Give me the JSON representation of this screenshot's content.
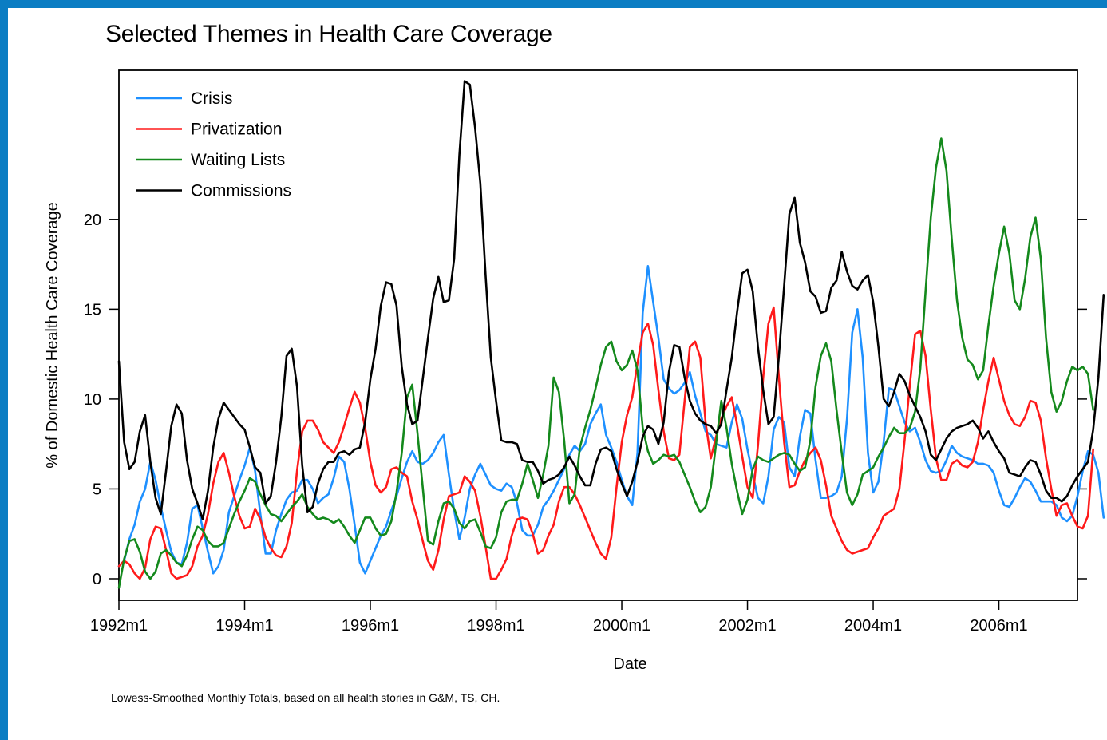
{
  "page": {
    "footnote": "Lowess-Smoothed Monthly Totals, based on all health stories in G&M, TS, CH.",
    "background_color": "#0b7dc3"
  },
  "chart_data": {
    "type": "line",
    "title": "Selected Themes in Health Care Coverage",
    "xlabel": "Date",
    "ylabel": "% of Domestic Health Care Coverage",
    "x_start": "1992m1",
    "x_frequency": "monthly",
    "xlim": [
      "1992m1",
      "2007m4"
    ],
    "ylim": [
      -1.2,
      28.3
    ],
    "x_ticks": [
      {
        "date": "1992m1",
        "label": "1992m1"
      },
      {
        "date": "1994m1",
        "label": "1994m1"
      },
      {
        "date": "1996m1",
        "label": "1996m1"
      },
      {
        "date": "1998m1",
        "label": "1998m1"
      },
      {
        "date": "2000m1",
        "label": "2000m1"
      },
      {
        "date": "2002m1",
        "label": "2002m1"
      },
      {
        "date": "2004m1",
        "label": "2004m1"
      },
      {
        "date": "2006m1",
        "label": "2006m1"
      }
    ],
    "y_ticks": [
      0,
      5,
      10,
      15,
      20
    ],
    "grid": false,
    "legend_position": "top-left",
    "series": [
      {
        "name": "Crisis",
        "color": "#1e90ff",
        "values": [
          0.7,
          1.0,
          2.2,
          3.0,
          4.3,
          5.0,
          6.5,
          5.5,
          4.0,
          2.7,
          1.5,
          0.9,
          0.8,
          2.0,
          3.9,
          4.1,
          2.8,
          1.5,
          0.3,
          0.7,
          1.6,
          3.7,
          4.6,
          5.5,
          6.3,
          7.3,
          6.0,
          3.6,
          1.4,
          1.4,
          2.7,
          3.6,
          4.4,
          4.8,
          4.9,
          5.5,
          5.5,
          5.0,
          4.2,
          4.5,
          4.7,
          5.6,
          6.8,
          6.5,
          5.0,
          3.0,
          0.9,
          0.3,
          1.0,
          1.7,
          2.4,
          2.9,
          3.8,
          4.6,
          5.6,
          6.5,
          7.1,
          6.5,
          6.4,
          6.6,
          7.0,
          7.6,
          8.0,
          5.8,
          3.8,
          2.2,
          3.4,
          5.0,
          5.8,
          6.4,
          5.8,
          5.2,
          5.0,
          4.9,
          5.3,
          5.1,
          4.2,
          2.7,
          2.4,
          2.4,
          3.0,
          4.0,
          4.4,
          4.9,
          5.5,
          6.1,
          6.9,
          7.4,
          7.1,
          7.5,
          8.6,
          9.2,
          9.7,
          8.0,
          7.3,
          6.5,
          5.5,
          4.6,
          4.1,
          7.0,
          14.8,
          17.4,
          15.4,
          13.4,
          11.1,
          10.6,
          10.3,
          10.5,
          10.9,
          11.5,
          10.2,
          9.2,
          8.2,
          8.0,
          7.5,
          7.4,
          7.3,
          8.7,
          9.7,
          8.9,
          7.2,
          5.8,
          4.5,
          4.2,
          5.7,
          8.3,
          9.0,
          8.7,
          6.2,
          5.7,
          7.9,
          9.4,
          9.2,
          6.6,
          4.5,
          4.5,
          4.6,
          4.8,
          5.7,
          8.9,
          13.7,
          15.0,
          12.3,
          7.0,
          4.8,
          5.4,
          7.6,
          10.6,
          10.5,
          9.6,
          8.7,
          8.2,
          8.4,
          7.6,
          6.6,
          6.0,
          5.9,
          6.0,
          6.6,
          7.4,
          7.0,
          6.8,
          6.7,
          6.6,
          6.4,
          6.4,
          6.3,
          5.9,
          4.9,
          4.1,
          4.0,
          4.5,
          5.1,
          5.6,
          5.4,
          4.9,
          4.3,
          4.3,
          4.3,
          4.1,
          3.4,
          3.2,
          3.5,
          4.6,
          6.0,
          7.1,
          6.9,
          5.9,
          3.4
        ]
      },
      {
        "name": "Privatization",
        "color": "#ff1a1a",
        "values": [
          0.7,
          1.0,
          0.8,
          0.3,
          0.0,
          0.6,
          2.2,
          2.9,
          2.8,
          1.6,
          0.3,
          0.0,
          0.1,
          0.2,
          0.7,
          1.8,
          2.4,
          3.6,
          5.3,
          6.5,
          7.0,
          5.9,
          4.6,
          3.5,
          2.8,
          2.9,
          3.9,
          3.3,
          2.3,
          1.7,
          1.3,
          1.2,
          1.8,
          3.1,
          6.0,
          8.2,
          8.8,
          8.8,
          8.3,
          7.6,
          7.3,
          7.0,
          7.6,
          8.5,
          9.5,
          10.4,
          9.8,
          8.4,
          6.5,
          5.2,
          4.8,
          5.1,
          6.1,
          6.2,
          5.9,
          5.7,
          4.3,
          3.3,
          2.1,
          1.0,
          0.5,
          1.6,
          3.3,
          4.6,
          4.7,
          4.8,
          5.7,
          5.4,
          4.9,
          3.5,
          1.8,
          0.0,
          0.0,
          0.5,
          1.1,
          2.4,
          3.3,
          3.4,
          3.3,
          2.5,
          1.4,
          1.6,
          2.4,
          3.0,
          4.3,
          5.1,
          5.1,
          4.7,
          4.1,
          3.4,
          2.7,
          2.0,
          1.4,
          1.1,
          2.3,
          5.1,
          7.6,
          9.1,
          10.1,
          12.0,
          13.7,
          14.2,
          13.0,
          10.5,
          8.2,
          6.7,
          6.6,
          6.9,
          9.9,
          12.9,
          13.2,
          12.3,
          8.7,
          6.7,
          7.9,
          8.9,
          9.6,
          10.1,
          8.6,
          6.8,
          5.1,
          4.5,
          7.4,
          11.2,
          14.2,
          15.1,
          11.2,
          7.6,
          5.1,
          5.2,
          6.0,
          6.6,
          7.0,
          7.3,
          6.6,
          5.2,
          3.5,
          2.8,
          2.1,
          1.6,
          1.4,
          1.5,
          1.6,
          1.7,
          2.3,
          2.8,
          3.5,
          3.7,
          3.9,
          5.0,
          7.7,
          10.8,
          13.6,
          13.8,
          12.4,
          9.4,
          6.7,
          5.5,
          5.5,
          6.4,
          6.6,
          6.3,
          6.2,
          6.5,
          7.6,
          9.4,
          11.0,
          12.3,
          11.1,
          9.9,
          9.1,
          8.6,
          8.5,
          9.0,
          9.9,
          9.8,
          8.8,
          6.7,
          5.0,
          3.5,
          4.1,
          4.2,
          3.5,
          2.9,
          2.8,
          3.5,
          7.2
        ]
      },
      {
        "name": "Waiting Lists",
        "color": "#14891c",
        "values": [
          -0.5,
          1.1,
          2.1,
          2.2,
          1.5,
          0.4,
          0.0,
          0.4,
          1.4,
          1.6,
          1.3,
          0.9,
          0.7,
          1.3,
          2.2,
          2.9,
          2.7,
          2.1,
          1.8,
          1.8,
          2.0,
          2.8,
          3.6,
          4.3,
          4.9,
          5.6,
          5.4,
          4.7,
          4.1,
          3.6,
          3.5,
          3.2,
          3.6,
          4.0,
          4.3,
          4.7,
          4.0,
          3.6,
          3.3,
          3.4,
          3.3,
          3.1,
          3.3,
          2.9,
          2.4,
          2.0,
          2.7,
          3.4,
          3.4,
          2.8,
          2.4,
          2.5,
          3.2,
          4.8,
          7.0,
          10.1,
          10.8,
          8.1,
          5.1,
          2.1,
          1.9,
          3.2,
          4.2,
          4.3,
          3.9,
          3.1,
          2.8,
          3.2,
          3.3,
          2.6,
          1.8,
          1.7,
          2.3,
          3.7,
          4.3,
          4.4,
          4.4,
          5.3,
          6.4,
          5.5,
          4.5,
          5.8,
          7.4,
          11.2,
          10.4,
          7.7,
          4.2,
          4.7,
          7.3,
          8.4,
          9.4,
          10.6,
          11.9,
          12.9,
          13.2,
          12.1,
          11.6,
          11.9,
          12.7,
          11.6,
          8.4,
          7.1,
          6.4,
          6.6,
          6.9,
          6.8,
          6.9,
          6.5,
          5.8,
          5.1,
          4.3,
          3.7,
          4.0,
          5.1,
          7.5,
          9.9,
          8.4,
          6.4,
          4.9,
          3.6,
          4.4,
          6.1,
          6.8,
          6.6,
          6.5,
          6.7,
          6.9,
          7.0,
          6.9,
          6.4,
          6.0,
          6.2,
          7.7,
          10.7,
          12.4,
          13.1,
          12.1,
          9.4,
          7.0,
          4.8,
          4.1,
          4.7,
          5.8,
          6.0,
          6.2,
          6.8,
          7.3,
          7.9,
          8.4,
          8.1,
          8.1,
          8.4,
          9.3,
          11.7,
          16.0,
          20.1,
          22.9,
          24.5,
          22.7,
          18.9,
          15.5,
          13.4,
          12.2,
          11.9,
          11.1,
          11.6,
          14.1,
          16.3,
          18.1,
          19.6,
          18.1,
          15.5,
          15.0,
          16.7,
          19.0,
          20.1,
          17.8,
          13.4,
          10.4,
          9.3,
          9.9,
          11.0,
          11.8,
          11.6,
          11.8,
          11.4,
          9.4
        ]
      },
      {
        "name": "Commissions",
        "color": "#000000",
        "values": [
          12.1,
          7.6,
          6.1,
          6.5,
          8.2,
          9.1,
          6.5,
          4.5,
          3.6,
          6.0,
          8.5,
          9.7,
          9.2,
          6.6,
          5.0,
          4.2,
          3.3,
          4.9,
          7.3,
          8.9,
          9.8,
          9.4,
          9.0,
          8.6,
          8.3,
          7.3,
          6.2,
          5.9,
          4.2,
          4.6,
          6.5,
          9.0,
          12.4,
          12.8,
          10.7,
          6.3,
          3.7,
          4.0,
          5.3,
          6.1,
          6.5,
          6.5,
          7.0,
          7.1,
          6.9,
          7.2,
          7.3,
          8.7,
          11.1,
          12.8,
          15.2,
          16.5,
          16.4,
          15.2,
          11.8,
          9.7,
          8.6,
          8.8,
          11.1,
          13.4,
          15.6,
          16.8,
          15.4,
          15.5,
          17.8,
          23.6,
          27.7,
          27.5,
          25.1,
          22.0,
          16.9,
          12.3,
          9.9,
          7.7,
          7.6,
          7.6,
          7.5,
          6.6,
          6.5,
          6.5,
          6.0,
          5.3,
          5.5,
          5.6,
          5.8,
          6.2,
          6.8,
          6.3,
          5.7,
          5.2,
          5.2,
          6.4,
          7.2,
          7.3,
          7.1,
          6.1,
          5.3,
          4.6,
          5.4,
          6.5,
          7.9,
          8.5,
          8.3,
          7.5,
          8.7,
          11.5,
          13.0,
          12.9,
          11.2,
          9.9,
          9.2,
          8.8,
          8.6,
          8.5,
          8.1,
          8.6,
          10.5,
          12.3,
          14.8,
          17.0,
          17.2,
          16.0,
          12.9,
          10.5,
          8.6,
          9.0,
          12.4,
          16.3,
          20.3,
          21.2,
          18.7,
          17.6,
          16.0,
          15.7,
          14.8,
          14.9,
          16.2,
          16.6,
          18.2,
          17.1,
          16.3,
          16.1,
          16.6,
          16.9,
          15.4,
          12.9,
          10.0,
          9.6,
          10.4,
          11.4,
          11.0,
          10.2,
          9.6,
          9.0,
          8.2,
          6.9,
          6.6,
          7.2,
          7.8,
          8.2,
          8.4,
          8.5,
          8.6,
          8.8,
          8.4,
          7.8,
          8.2,
          7.6,
          7.1,
          6.7,
          5.9,
          5.8,
          5.7,
          6.2,
          6.6,
          6.5,
          5.8,
          4.9,
          4.5,
          4.5,
          4.3,
          4.6,
          5.2,
          5.7,
          6.1,
          6.5,
          8.3,
          11.2,
          15.8
        ]
      }
    ]
  }
}
